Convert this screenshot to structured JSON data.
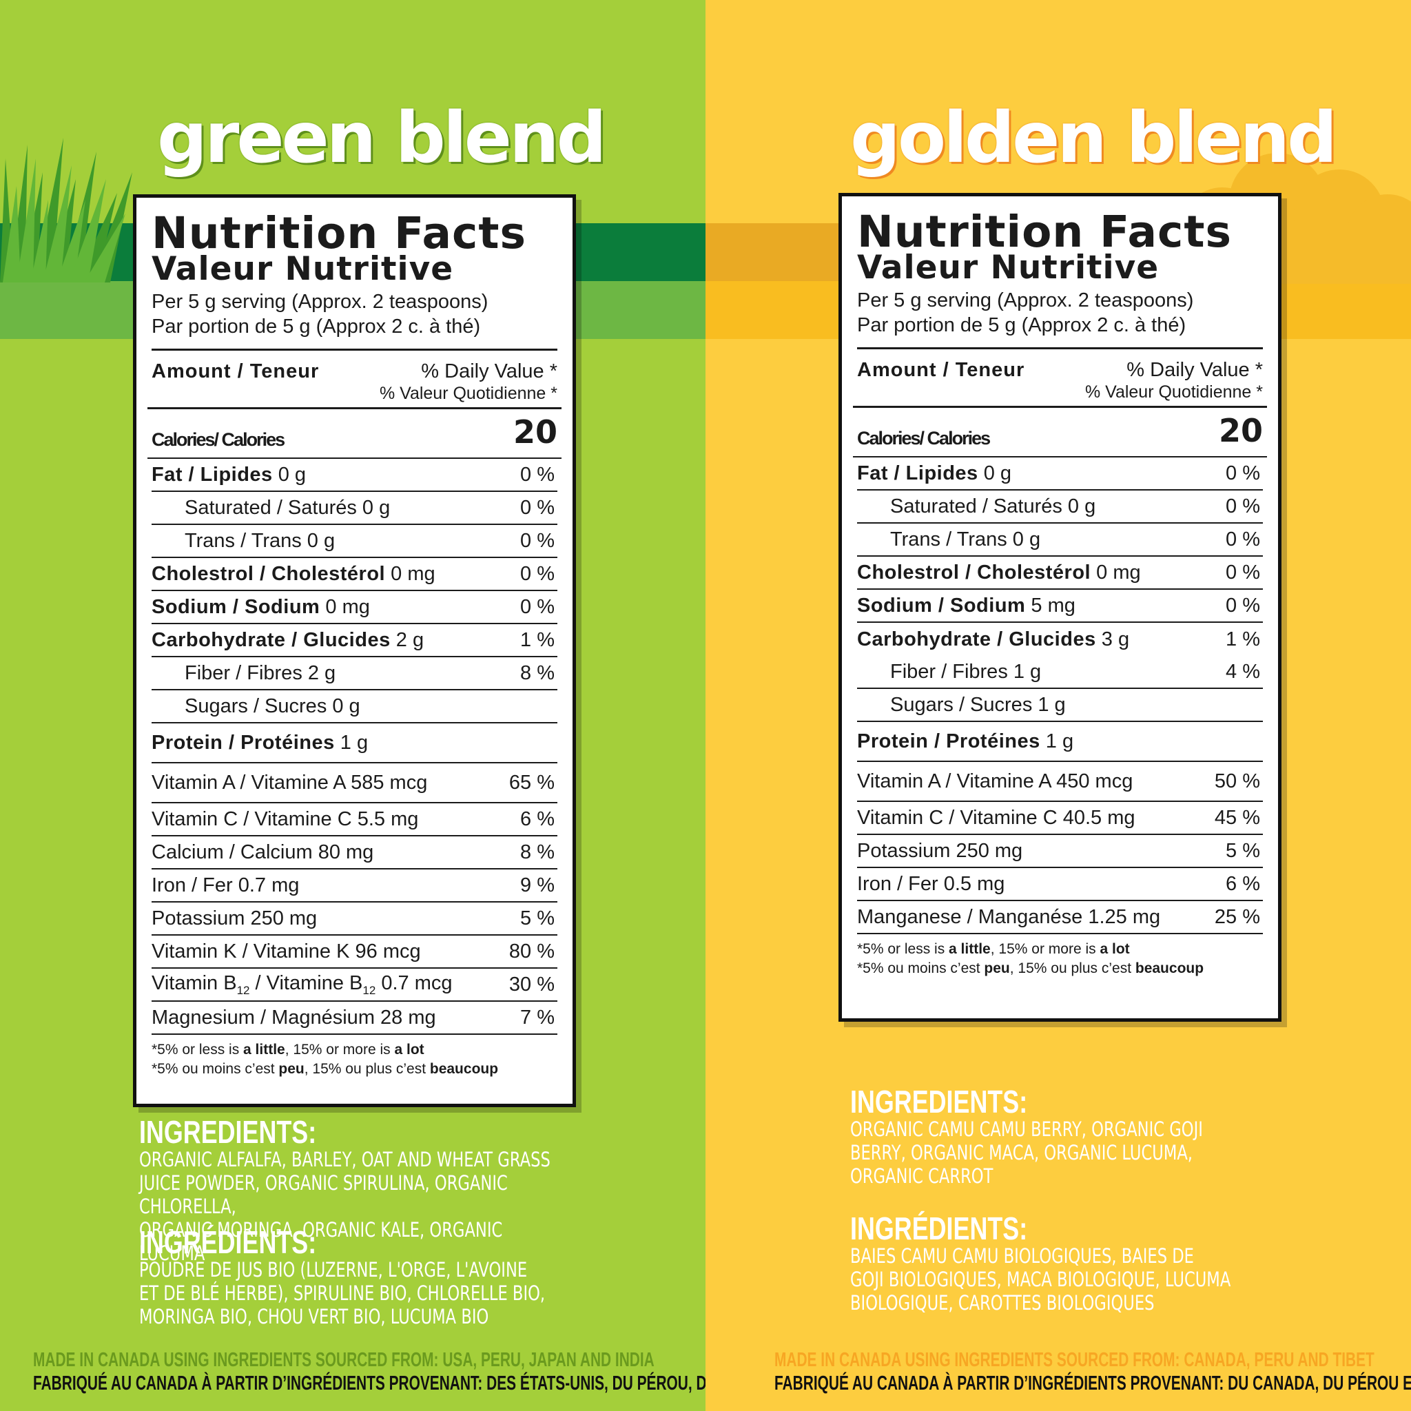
{
  "green": {
    "title": "green blend",
    "label": {
      "title": "Nutrition Facts",
      "subtitle": "Valeur Nutritive",
      "serving_en": "Per 5 g serving (Approx. 2 teaspoons)",
      "serving_fr": "Par portion de 5 g (Approx 2 c. à thé)",
      "amount": "Amount / Teneur",
      "dv_en": "% Daily Value *",
      "dv_fr": "% Valeur Quotidienne *",
      "calories_label": "Calories/ Calories",
      "calories_value": "20",
      "rows": [
        {
          "b": "Fat / Lipides",
          "amt": "0 g",
          "pct": "0 %"
        },
        {
          "name": "Saturated / Saturés 0 g",
          "pct": "0 %"
        },
        {
          "name": "Trans / Trans 0 g",
          "pct": "0 %"
        },
        {
          "b": "Cholestrol / Cholestérol",
          "amt": "0 mg",
          "pct": "0 %"
        },
        {
          "b": "Sodium / Sodium",
          "amt": "0 mg",
          "pct": "0 %"
        },
        {
          "b": "Carbohydrate / Glucides",
          "amt": "2 g",
          "pct": "1 %"
        },
        {
          "name": "Fiber / Fibres 2 g",
          "pct": "8 %"
        },
        {
          "name": "Sugars / Sucres 0 g",
          "pct": ""
        },
        {
          "b": "Protein / Protéines",
          "amt": "1 g",
          "pct": ""
        }
      ],
      "vitamins": [
        {
          "name": "Vitamin A / Vitamine A 585 mcg",
          "pct": "65 %"
        },
        {
          "name": "Vitamin C / Vitamine C 5.5 mg",
          "pct": "6 %"
        },
        {
          "name": "Calcium / Calcium 80 mg",
          "pct": "8 %"
        },
        {
          "name": "Iron / Fer 0.7 mg",
          "pct": "9 %"
        },
        {
          "name": "Potassium 250 mg",
          "pct": "5 %"
        },
        {
          "name": "Vitamin K / Vitamine K 96 mcg",
          "pct": "80 %"
        },
        {
          "name": "Vitamin B",
          "sub": "12",
          "name2": " / Vitamine B",
          "sub2": "12",
          "name3": " 0.7 mcg",
          "pct": "30 %"
        },
        {
          "name": "Magnesium / Magnésium 28 mg",
          "pct": "7 %"
        }
      ],
      "foot_en_a": "*5% or less is ",
      "foot_en_b": "a little",
      "foot_en_c": ", 15% or more is ",
      "foot_en_d": "a lot",
      "foot_fr_a": "*5% ou moins c’est ",
      "foot_fr_b": "peu",
      "foot_fr_c": ", 15% ou plus c’est ",
      "foot_fr_d": "beaucoup"
    },
    "ingredients_heading": "INGREDIENTS:",
    "ingredients": "ORGANIC ALFALFA, BARLEY, OAT AND WHEAT GRASS\nJUICE POWDER, ORGANIC SPIRULINA, ORGANIC CHLORELLA,\nORGANIC MORINGA, ORGANIC KALE, ORGANIC LUCUMA",
    "ingredients_fr_heading": "INGRÉDIENTS:",
    "ingredients_fr": "POUDRE DE JUS BIO (LUZERNE, L'ORGE, L'AVOINE\nET DE BLÉ HERBE), SPIRULINE BIO, CHLORELLE BIO,\nMORINGA BIO, CHOU VERT BIO, LUCUMA BIO",
    "made_en": "MADE IN CANADA USING INGREDIENTS SOURCED FROM: USA, PERU, JAPAN AND INDIA",
    "made_fr": "FABRIQUÉ AU CANADA À PARTIR D’INGRÉDIENTS PROVENANT: DES ÉTATS-UNIS, DU PÉROU, DU JAPON ET DE L’INDE"
  },
  "golden": {
    "title": "golden blend",
    "label": {
      "title": "Nutrition Facts",
      "subtitle": "Valeur Nutritive",
      "serving_en": "Per 5 g serving (Approx. 2 teaspoons)",
      "serving_fr": "Par portion de 5 g (Approx 2 c. à thé)",
      "amount": "Amount / Teneur",
      "dv_en": "% Daily Value *",
      "dv_fr": "% Valeur Quotidienne *",
      "calories_label": "Calories/ Calories",
      "calories_value": "20",
      "rows": [
        {
          "b": "Fat / Lipides",
          "amt": "0 g",
          "pct": "0 %"
        },
        {
          "name": "Saturated / Saturés 0 g",
          "pct": "0 %"
        },
        {
          "name": "Trans / Trans 0 g",
          "pct": "0 %"
        },
        {
          "b": "Cholestrol / Cholestérol",
          "amt": "0 mg",
          "pct": "0 %"
        },
        {
          "b": "Sodium / Sodium",
          "amt": "5 mg",
          "pct": "0 %"
        },
        {
          "b": "Carbohydrate / Glucides",
          "amt": "3 g",
          "pct": "1 %"
        },
        {
          "name": "Fiber / Fibres 1 g",
          "pct": "4 %"
        },
        {
          "name": "Sugars / Sucres 1 g",
          "pct": ""
        },
        {
          "b": "Protein / Protéines",
          "amt": "1 g",
          "pct": ""
        }
      ],
      "vitamins": [
        {
          "name": "Vitamin A / Vitamine A 450 mcg",
          "pct": "50 %"
        },
        {
          "name": "Vitamin C / Vitamine C 40.5 mg",
          "pct": "45 %"
        },
        {
          "name": "Potassium 250 mg",
          "pct": "5 %"
        },
        {
          "name": "Iron / Fer 0.5 mg",
          "pct": "6 %"
        },
        {
          "name": "Manganese / Manganése 1.25 mg",
          "pct": "25 %"
        }
      ],
      "foot_en_a": "*5% or less is ",
      "foot_en_b": "a little",
      "foot_en_c": ", 15% or more is ",
      "foot_en_d": "a lot",
      "foot_fr_a": "*5% ou moins c’est ",
      "foot_fr_b": "peu",
      "foot_fr_c": ", 15% ou plus c’est ",
      "foot_fr_d": "beaucoup"
    },
    "ingredients_heading": "INGREDIENTS:",
    "ingredients": "ORGANIC CAMU CAMU BERRY, ORGANIC GOJI\nBERRY, ORGANIC MACA, ORGANIC LUCUMA,\nORGANIC CARROT",
    "ingredients_fr_heading": "INGRÉDIENTS:",
    "ingredients_fr": "BAIES CAMU CAMU BIOLOGIQUES, BAIES DE\nGOJI BIOLOGIQUES, MACA BIOLOGIQUE, LUCUMA\nBIOLOGIQUE, CAROTTES BIOLOGIQUES",
    "made_en": "MADE IN CANADA USING INGREDIENTS SOURCED FROM: CANADA, PERU AND TIBET",
    "made_fr": "FABRIQUÉ AU CANADA À PARTIR D’INGRÉDIENTS PROVENANT: DU CANADA, DU PÉROU ET DU TIBET"
  },
  "colors": {
    "green_bg": "#a4cf3a",
    "green_band_dark": "#0b7d3b",
    "green_band_mid": "#6db744",
    "golden_bg": "#fdcd3f",
    "golden_band_dark": "#e9aa24",
    "golden_band_mid": "#f9bd20",
    "made_green": "#6a9a1e",
    "made_golden": "#f7a623"
  }
}
